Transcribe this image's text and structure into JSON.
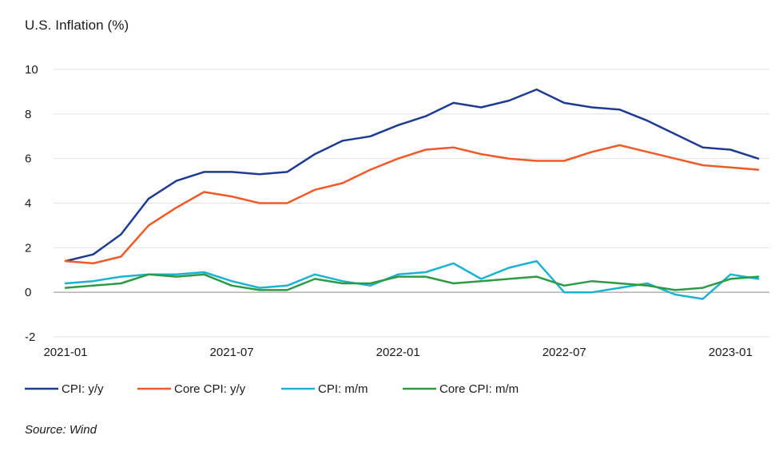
{
  "title": "U.S. Inflation (%)",
  "source": "Source: Wind",
  "chart_data": {
    "type": "line",
    "title": "U.S. Inflation (%)",
    "xlabel": "",
    "ylabel": "",
    "ylim": [
      -2,
      10
    ],
    "yticks": [
      -2,
      0,
      2,
      4,
      6,
      8,
      10
    ],
    "xtick_labels": [
      "2021-01",
      "2021-07",
      "2022-01",
      "2022-07",
      "2023-01"
    ],
    "grid": "horizontal",
    "legend_position": "bottom",
    "x": [
      "2021-01",
      "2021-02",
      "2021-03",
      "2021-04",
      "2021-05",
      "2021-06",
      "2021-07",
      "2021-08",
      "2021-09",
      "2021-10",
      "2021-11",
      "2021-12",
      "2022-01",
      "2022-02",
      "2022-03",
      "2022-04",
      "2022-05",
      "2022-06",
      "2022-07",
      "2022-08",
      "2022-09",
      "2022-10",
      "2022-11",
      "2022-12",
      "2023-01",
      "2023-02"
    ],
    "series": [
      {
        "name": "CPI: y/y",
        "color": "#1f3a93",
        "values": [
          1.4,
          1.7,
          2.6,
          4.2,
          5.0,
          5.4,
          5.4,
          5.3,
          5.4,
          6.2,
          6.8,
          7.0,
          7.5,
          7.9,
          8.5,
          8.3,
          8.6,
          9.1,
          8.5,
          8.3,
          8.2,
          7.7,
          7.1,
          6.5,
          6.4,
          6.0
        ]
      },
      {
        "name": "Core CPI: y/y",
        "color": "#f05a28",
        "values": [
          1.4,
          1.3,
          1.6,
          3.0,
          3.8,
          4.5,
          4.3,
          4.0,
          4.0,
          4.6,
          4.9,
          5.5,
          6.0,
          6.4,
          6.5,
          6.2,
          6.0,
          5.9,
          5.9,
          6.3,
          6.6,
          6.3,
          6.0,
          5.7,
          5.6,
          5.5
        ]
      },
      {
        "name": "CPI: m/m",
        "color": "#1ab3d1",
        "values": [
          0.4,
          0.5,
          0.7,
          0.8,
          0.8,
          0.9,
          0.5,
          0.2,
          0.3,
          0.8,
          0.5,
          0.3,
          0.8,
          0.9,
          1.3,
          0.6,
          1.1,
          1.4,
          0.0,
          0.0,
          0.2,
          0.4,
          -0.1,
          -0.3,
          0.8,
          0.6
        ]
      },
      {
        "name": "Core CPI: m/m",
        "color": "#2e9a46",
        "values": [
          0.2,
          0.3,
          0.4,
          0.8,
          0.7,
          0.8,
          0.3,
          0.1,
          0.1,
          0.6,
          0.4,
          0.4,
          0.7,
          0.7,
          0.4,
          0.5,
          0.6,
          0.7,
          0.3,
          0.5,
          0.4,
          0.3,
          0.1,
          0.2,
          0.6,
          0.7
        ]
      }
    ]
  }
}
